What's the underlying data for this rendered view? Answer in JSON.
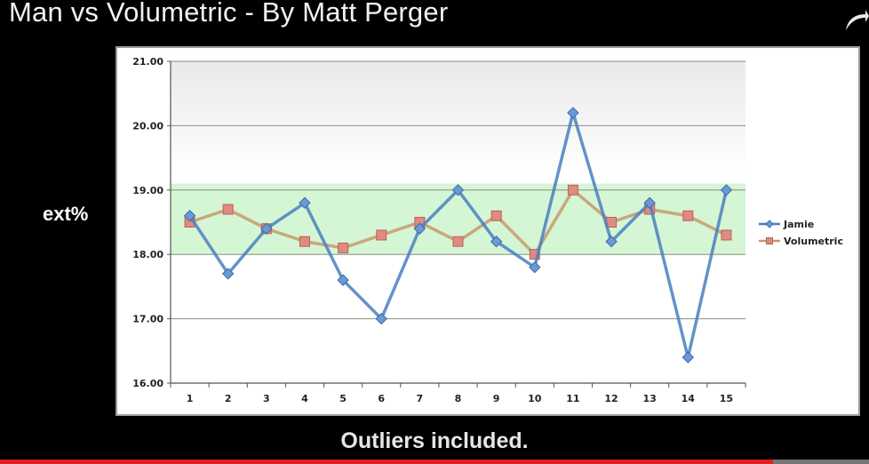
{
  "header": {
    "title": "Man vs Volumetric - By Matt Perger"
  },
  "caption": "Outliers included.",
  "video": {
    "progress_percent": 89,
    "progress_color": "#e02121"
  },
  "icons": {
    "corner": "share-arrow-icon"
  },
  "chart_data": {
    "type": "line",
    "title": "",
    "xlabel": "",
    "ylabel": "ext%",
    "categories": [
      "1",
      "2",
      "3",
      "4",
      "5",
      "6",
      "7",
      "8",
      "9",
      "10",
      "11",
      "12",
      "13",
      "14",
      "15"
    ],
    "y_ticks": [
      "16.00",
      "17.00",
      "18.00",
      "19.00",
      "20.00",
      "21.00"
    ],
    "ylim": [
      16,
      21
    ],
    "target_band": [
      18,
      19.1
    ],
    "grid": true,
    "legend_position": "right",
    "series": [
      {
        "name": "Jamie",
        "marker": "diamond",
        "color": "#4a7fc0",
        "values": [
          18.6,
          17.7,
          18.4,
          18.8,
          17.6,
          17.0,
          18.4,
          19.0,
          18.2,
          17.8,
          20.2,
          18.2,
          18.8,
          16.4,
          19.0
        ]
      },
      {
        "name": "Volumetric",
        "marker": "square",
        "color": "#c69a6b",
        "values": [
          18.5,
          18.7,
          18.4,
          18.2,
          18.1,
          18.3,
          18.5,
          18.2,
          18.6,
          18.0,
          19.0,
          18.5,
          18.7,
          18.6,
          18.3
        ]
      }
    ]
  }
}
